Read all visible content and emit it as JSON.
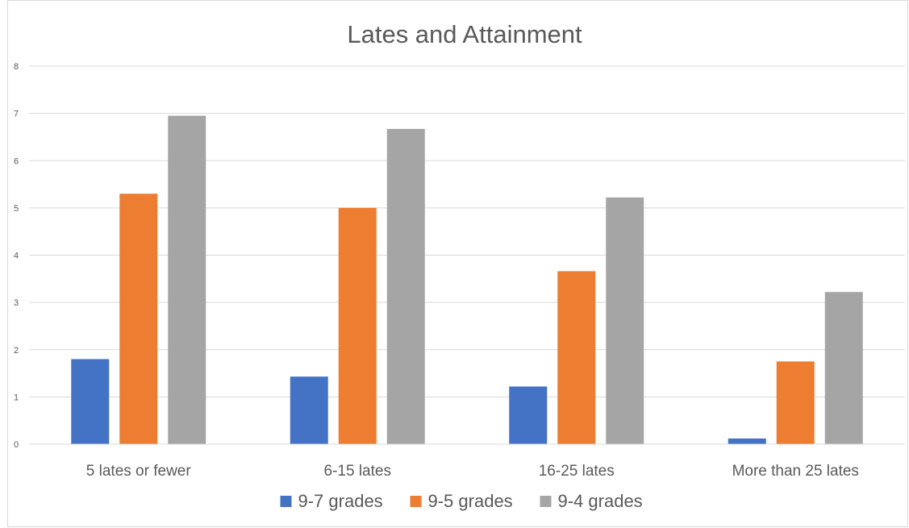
{
  "chart_data": {
    "type": "bar",
    "title": "Lates and Attainment",
    "categories": [
      "5 lates or fewer",
      "6-15 lates",
      "16-25 lates",
      "More than 25 lates"
    ],
    "series": [
      {
        "name": "9-7 grades",
        "values": [
          1.8,
          1.43,
          1.22,
          0.12
        ],
        "color": "#4472C4"
      },
      {
        "name": "9-5 grades",
        "values": [
          5.3,
          5.0,
          3.66,
          1.75
        ],
        "color": "#ED7D31"
      },
      {
        "name": "9-4 grades",
        "values": [
          6.95,
          6.67,
          5.22,
          3.22
        ],
        "color": "#A5A5A5"
      }
    ],
    "ylim": [
      0,
      8
    ],
    "yticks": [
      0,
      1,
      2,
      3,
      4,
      5,
      6,
      7,
      8
    ],
    "grid": true,
    "legend_position": "bottom"
  }
}
